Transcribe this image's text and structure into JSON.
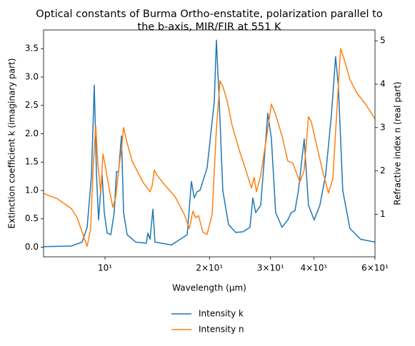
{
  "chart_data": {
    "type": "line",
    "title": [
      "Optical constants of Burma Ortho-enstatite, polarization parallel to",
      "the b-axis, MIR/FIR at 551 K"
    ],
    "xlabel": "Wavelength (μm)",
    "ylabel": "Extinction coefficient k (imaginary part)",
    "y2label": "Refractive index n (real part)",
    "xscale": "log",
    "xlim": [
      6.65,
      60
    ],
    "xticks": [
      {
        "value": 10,
        "label": "10¹"
      },
      {
        "value": 20,
        "label": "2×10¹"
      },
      {
        "value": 30,
        "label": "3×10¹"
      },
      {
        "value": 40,
        "label": "4×10¹"
      },
      {
        "value": 60,
        "label": "6×10¹"
      }
    ],
    "ylim": [
      -0.17,
      3.83
    ],
    "yticks": [
      {
        "value": 0,
        "label": "0.0"
      },
      0.5,
      {
        "value": 1,
        "label": "1.0"
      },
      1.5,
      {
        "value": 2,
        "label": "2.0"
      },
      2.5,
      {
        "value": 3,
        "label": "3.0"
      },
      3.5
    ],
    "y2lim": [
      0.02,
      5.25
    ],
    "y2ticks": [
      1,
      2,
      3,
      4,
      5
    ],
    "legend": "lower center",
    "series": [
      {
        "name": "Intensity k",
        "color": "#1f77b4",
        "axis": "y",
        "x": [
          6.65,
          8.0,
          8.59,
          8.88,
          9.14,
          9.31,
          9.45,
          9.58,
          9.72,
          9.81,
          9.95,
          10.14,
          10.39,
          10.63,
          10.79,
          10.94,
          11.15,
          11.31,
          11.58,
          12.26,
          13.16,
          13.29,
          13.48,
          13.74,
          13.93,
          15.54,
          17.25,
          17.74,
          18.08,
          18.43,
          18.78,
          19.69,
          20.65,
          20.94,
          21.34,
          21.85,
          22.7,
          23.8,
          24.95,
          26.17,
          26.67,
          27.18,
          28.1,
          28.76,
          29.45,
          30.16,
          31.03,
          32.38,
          33.63,
          34.43,
          35.26,
          36.1,
          37.5,
          38.58,
          40.07,
          41.62,
          43.23,
          44.9,
          46.19,
          47.07,
          48.44,
          50.79,
          54.53,
          60.0
        ],
        "values": [
          0.01,
          0.02,
          0.09,
          0.35,
          1.27,
          2.86,
          1.27,
          0.48,
          1.0,
          1.27,
          0.61,
          0.25,
          0.22,
          0.61,
          1.33,
          1.33,
          1.96,
          0.61,
          0.22,
          0.09,
          0.07,
          0.25,
          0.14,
          0.67,
          0.09,
          0.04,
          0.22,
          1.16,
          0.87,
          0.98,
          1.0,
          1.4,
          2.57,
          3.65,
          2.57,
          1.0,
          0.4,
          0.26,
          0.27,
          0.35,
          0.87,
          0.61,
          0.74,
          1.53,
          2.36,
          1.92,
          0.61,
          0.35,
          0.48,
          0.61,
          0.64,
          1.0,
          1.91,
          0.74,
          0.48,
          0.74,
          1.27,
          2.31,
          3.36,
          2.83,
          1.0,
          0.33,
          0.14,
          0.09
        ]
      },
      {
        "name": "Intensity n",
        "color": "#ff7f0e",
        "axis": "y2",
        "x": [
          6.65,
          7.28,
          8.0,
          8.31,
          8.59,
          8.88,
          9.09,
          9.23,
          9.4,
          9.54,
          9.72,
          9.86,
          10.0,
          10.24,
          10.53,
          10.74,
          10.99,
          11.15,
          11.31,
          11.58,
          11.97,
          12.86,
          13.48,
          13.67,
          13.87,
          14.13,
          14.82,
          15.91,
          16.92,
          17.49,
          17.91,
          18.25,
          18.6,
          19.14,
          19.69,
          20.36,
          20.94,
          21.45,
          21.85,
          22.48,
          23.24,
          24.37,
          25.55,
          26.41,
          26.92,
          27.31,
          28.1,
          29.04,
          30.16,
          31.03,
          32.38,
          33.63,
          34.77,
          36.45,
          37.5,
          38.58,
          39.32,
          41.04,
          42.43,
          44.06,
          45.34,
          46.64,
          47.75,
          49.14,
          50.79,
          53.25,
          56.36,
          60.0
        ],
        "values": [
          1.48,
          1.36,
          1.13,
          0.92,
          0.59,
          0.26,
          0.67,
          1.98,
          3.05,
          2.15,
          1.49,
          2.39,
          2.15,
          1.66,
          1.16,
          1.41,
          2.15,
          2.48,
          3.0,
          2.64,
          2.23,
          1.74,
          1.52,
          1.66,
          2.02,
          1.9,
          1.69,
          1.41,
          1.0,
          0.67,
          1.07,
          0.92,
          0.97,
          0.59,
          0.54,
          1.0,
          2.97,
          4.08,
          3.95,
          3.62,
          3.05,
          2.48,
          1.98,
          1.61,
          1.85,
          1.52,
          1.9,
          2.64,
          3.54,
          3.3,
          2.8,
          2.23,
          2.18,
          1.74,
          2.02,
          3.25,
          3.13,
          2.48,
          1.98,
          1.49,
          1.82,
          3.46,
          4.82,
          4.52,
          4.11,
          3.79,
          3.54,
          3.2
        ]
      }
    ]
  }
}
